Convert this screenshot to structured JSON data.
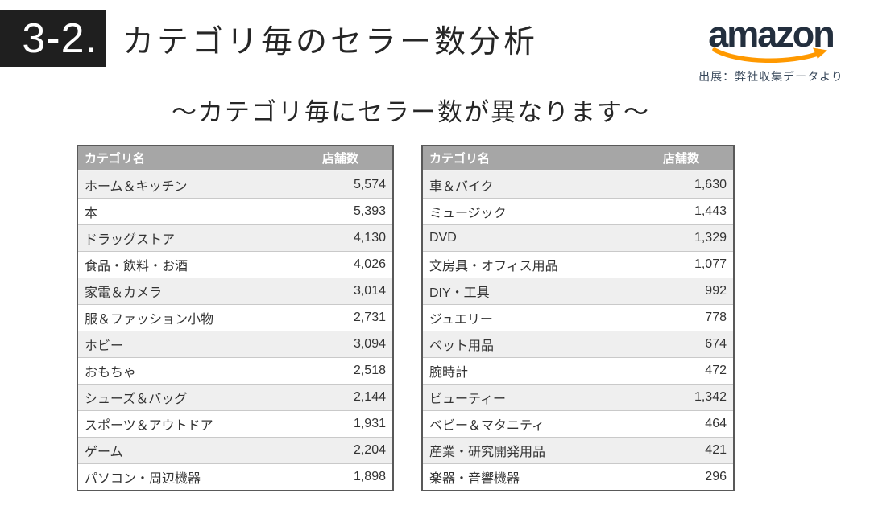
{
  "header": {
    "section_number": "3-2.",
    "title": "カテゴリ毎のセラー数分析",
    "logo_text": "amazon",
    "source_note": "出展：弊社収集データより"
  },
  "subtitle": "～カテゴリ毎にセラー数が異なります～",
  "tables": {
    "columns": {
      "category": "カテゴリ名",
      "count": "店舗数"
    },
    "left": {
      "rows": [
        {
          "category": "ホーム＆キッチン",
          "count": "5,574"
        },
        {
          "category": "本",
          "count": "5,393"
        },
        {
          "category": "ドラッグストア",
          "count": "4,130"
        },
        {
          "category": "食品・飲料・お酒",
          "count": "4,026"
        },
        {
          "category": "家電＆カメラ",
          "count": "3,014"
        },
        {
          "category": "服＆ファッション小物",
          "count": "2,731"
        },
        {
          "category": "ホビー",
          "count": "3,094"
        },
        {
          "category": "おもちゃ",
          "count": "2,518"
        },
        {
          "category": "シューズ＆バッグ",
          "count": "2,144"
        },
        {
          "category": "スポーツ＆アウトドア",
          "count": "1,931"
        },
        {
          "category": "ゲーム",
          "count": "2,204"
        },
        {
          "category": "パソコン・周辺機器",
          "count": "1,898"
        }
      ]
    },
    "right": {
      "rows": [
        {
          "category": "車＆バイク",
          "count": "1,630"
        },
        {
          "category": "ミュージック",
          "count": "1,443"
        },
        {
          "category": "DVD",
          "count": "1,329"
        },
        {
          "category": "文房具・オフィス用品",
          "count": "1,077"
        },
        {
          "category": "DIY・工具",
          "count": "992"
        },
        {
          "category": "ジュエリー",
          "count": "778"
        },
        {
          "category": "ペット用品",
          "count": "674"
        },
        {
          "category": "腕時計",
          "count": "472"
        },
        {
          "category": "ビューティー",
          "count": "1,342"
        },
        {
          "category": "ベビー＆マタニティ",
          "count": "464"
        },
        {
          "category": "産業・研究開発用品",
          "count": "421"
        },
        {
          "category": "楽器・音響機器",
          "count": "296"
        }
      ]
    }
  },
  "colors": {
    "section_box_bg": "#1f1f1f",
    "title_text": "#262626",
    "amazon_logo": "#232f3e",
    "amazon_smile": "#ff9900",
    "table_header_bg": "#a6a6a6",
    "table_header_text": "#ffffff",
    "row_alt_bg": "#efefef",
    "row_bg": "#ffffff",
    "table_border": "#595959",
    "row_text": "#333333"
  }
}
